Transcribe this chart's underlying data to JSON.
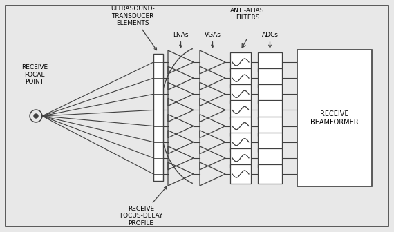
{
  "bg_color": "#e8e8e8",
  "box_color": "#ffffff",
  "line_color": "#404040",
  "text_color": "#000000",
  "n_channels": 8,
  "font_size": 6.5,
  "figsize": [
    5.7,
    3.36
  ],
  "dpi": 100,
  "labels": {
    "focal": "RECEIVE\nFOCAL\nPOINT",
    "transducer": "ULTRASOUND-\nTRANSDUCER\nELEMENTS",
    "lna": "LNAs",
    "vga": "VGAs",
    "filter": "ANTI-ALIAS\nFILTERS",
    "adc": "ADCs",
    "beamformer": "RECEIVE\nBEAMFORMER",
    "delay": "RECEIVE\nFOCUS-DELAY\nPROFILE"
  }
}
